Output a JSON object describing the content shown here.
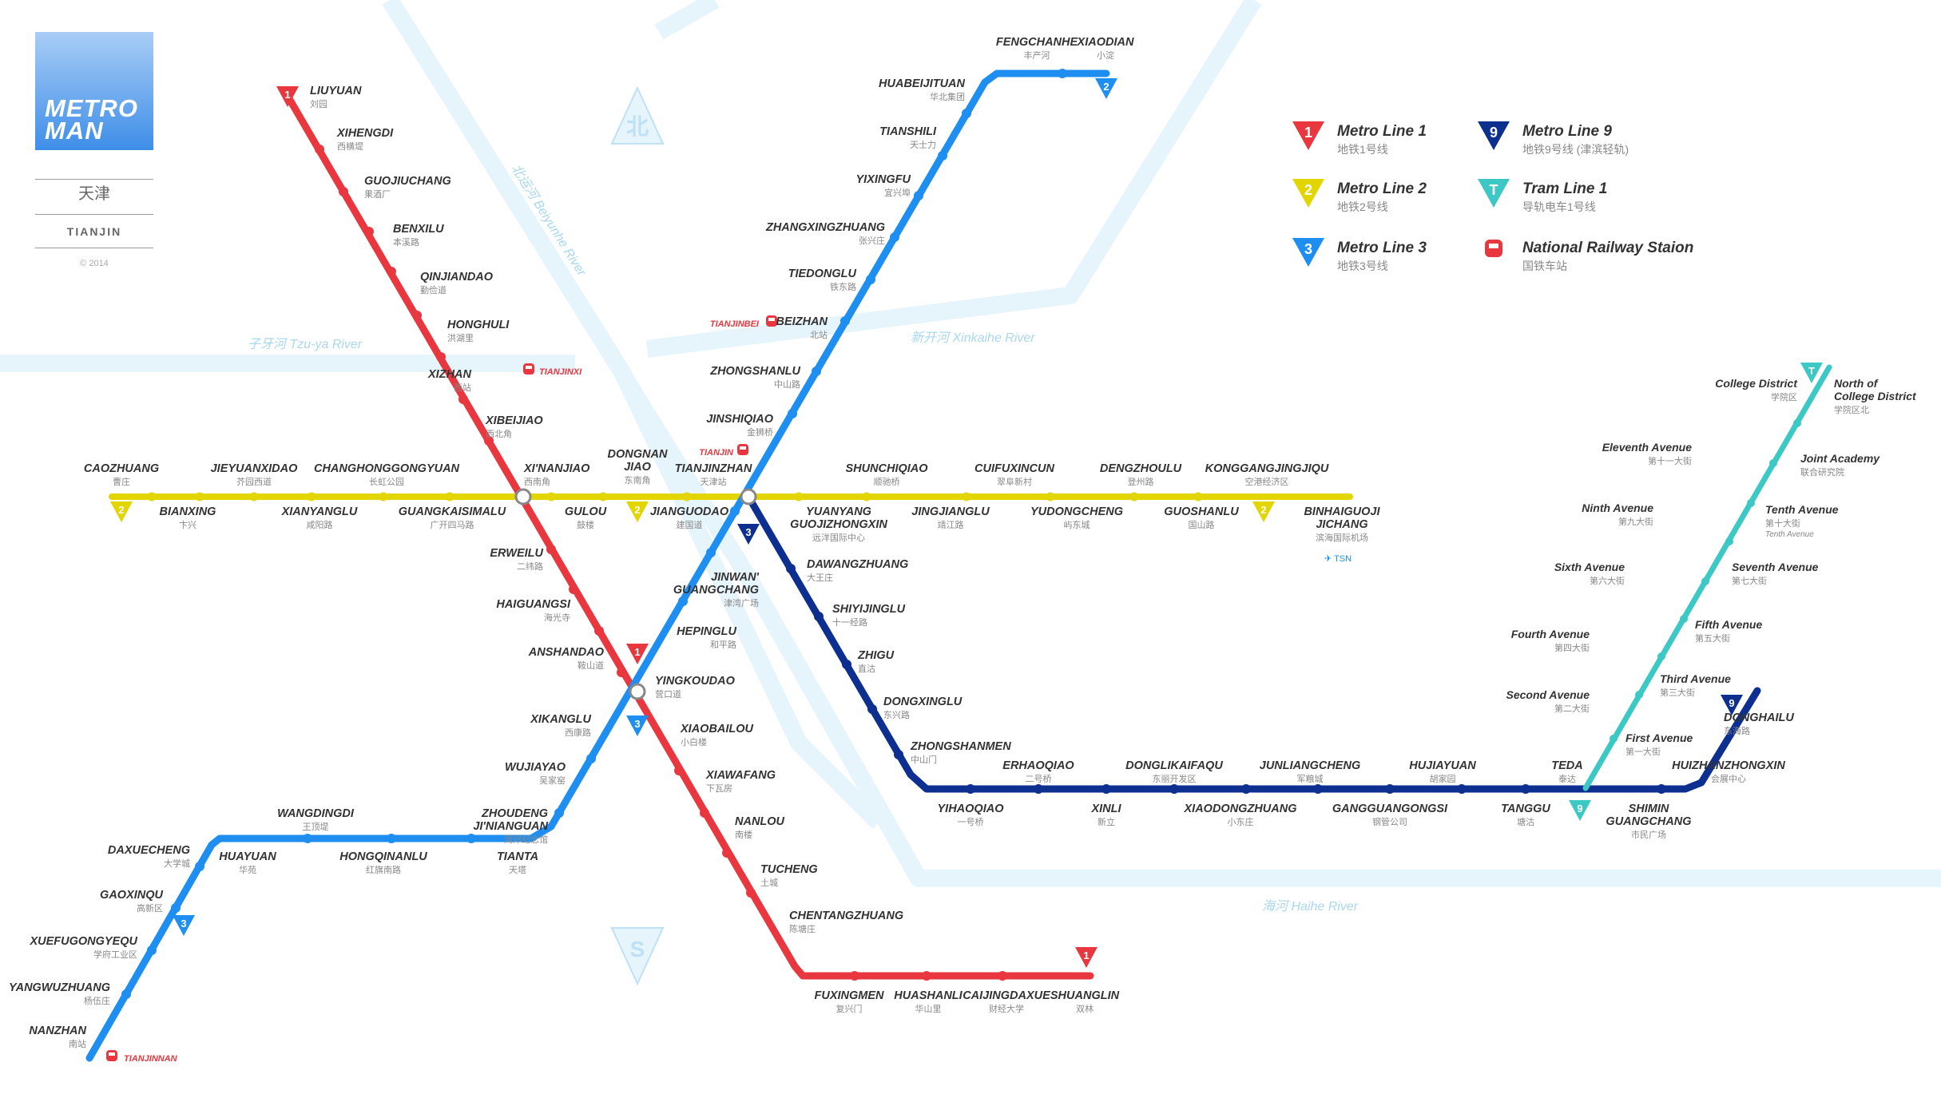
{
  "branding": {
    "title_1": "METRO",
    "title_2": "MAN",
    "city_zh": "天津",
    "city_en": "TIANJIN",
    "copyright": "© 2014"
  },
  "colors": {
    "line1": "#e8373f",
    "line2": "#e3d600",
    "line3": "#1e8ff0",
    "line9": "#0d2f8f",
    "tram1": "#3cc8c4",
    "river": "#e6f4fc",
    "river_label": "#a8d8f0",
    "rail": "#e8373f"
  },
  "legend": [
    {
      "badge": "1",
      "color": "#e8373f",
      "name": "Metro Line 1",
      "zh": "地铁1号线"
    },
    {
      "badge": "2",
      "color": "#e3d600",
      "name": "Metro Line 2",
      "zh": "地铁2号线"
    },
    {
      "badge": "3",
      "color": "#1e8ff0",
      "name": "Metro Line 3",
      "zh": "地铁3号线"
    },
    {
      "badge": "9",
      "color": "#0d2f8f",
      "name": "Metro Line 9",
      "zh": "地铁9号线 (津滨轻轨)"
    },
    {
      "badge": "T",
      "color": "#3cc8c4",
      "name": "Tram Line 1",
      "zh": "导轨电车1号线"
    },
    {
      "badge": "rail-icon",
      "color": "#e8373f",
      "name": "National Railway Staion",
      "zh": "国铁车站"
    }
  ],
  "rivers": [
    {
      "zh": "子牙河",
      "en": "Tzu-ya River"
    },
    {
      "zh": "新开河",
      "en": "Xinkaihe River"
    },
    {
      "zh": "北运河",
      "en": "Beiyunhe River"
    },
    {
      "zh": "海河",
      "en": "Haihe River"
    }
  ],
  "compass": {
    "north": "北",
    "south": "S"
  },
  "line_badges": [
    "1",
    "1",
    "1",
    "2",
    "2",
    "2",
    "2",
    "3",
    "3",
    "3",
    "9",
    "9",
    "T",
    "T"
  ],
  "rail_labels": [
    "TIANJINXI",
    "TIANJINBEI",
    "TIANJIN",
    "TIANJINNAN"
  ],
  "airport": {
    "code": "TSN"
  },
  "stations": [
    {
      "en": "LIUYUAN",
      "zh": "刘园"
    },
    {
      "en": "XIHENGDI",
      "zh": "西横堤"
    },
    {
      "en": "GUOJIUCHANG",
      "zh": "果酒厂"
    },
    {
      "en": "BENXILU",
      "zh": "本溪路"
    },
    {
      "en": "QINJIANDAO",
      "zh": "勤俭道"
    },
    {
      "en": "HONGHULI",
      "zh": "洪湖里"
    },
    {
      "en": "XIZHAN",
      "zh": "西站"
    },
    {
      "en": "XIBEIJIAO",
      "zh": "西北角"
    },
    {
      "en": "XI'NANJIAO",
      "zh": "西南角"
    },
    {
      "en": "ERWEILU",
      "zh": "二纬路"
    },
    {
      "en": "HAIGUANGSI",
      "zh": "海光寺"
    },
    {
      "en": "ANSHANDAO",
      "zh": "鞍山道"
    },
    {
      "en": "YINGKOUDAO",
      "zh": "营口道"
    },
    {
      "en": "XIAOBAILOU",
      "zh": "小白楼"
    },
    {
      "en": "XIAWAFANG",
      "zh": "下瓦房"
    },
    {
      "en": "NANLOU",
      "zh": "南楼"
    },
    {
      "en": "TUCHENG",
      "zh": "土城"
    },
    {
      "en": "CHENTANGZHUANG",
      "zh": "陈塘庄"
    },
    {
      "en": "FUXINGMEN",
      "zh": "复兴门"
    },
    {
      "en": "HUASHANLI",
      "zh": "华山里"
    },
    {
      "en": "CAIJINGDAXUE",
      "zh": "财经大学"
    },
    {
      "en": "SHUANGLIN",
      "zh": "双林"
    },
    {
      "en": "CAOZHUANG",
      "zh": "曹庄"
    },
    {
      "en": "BIANXING",
      "zh": "卞兴"
    },
    {
      "en": "JIEYUANXIDAO",
      "zh": "芥园西道"
    },
    {
      "en": "XIANYANGLU",
      "zh": "咸阳路"
    },
    {
      "en": "CHANGHONGGONGYUAN",
      "zh": "长虹公园"
    },
    {
      "en": "GUANGKAISIMALU",
      "zh": "广开四马路"
    },
    {
      "en": "GULOU",
      "zh": "鼓楼"
    },
    {
      "en": "DONGNAN JIAO",
      "zh": "东南角"
    },
    {
      "en": "JIANGUODAO",
      "zh": "建国道"
    },
    {
      "en": "TIANJINZHAN",
      "zh": "天津站"
    },
    {
      "en": "YUANYANG GUOJIZHONGXIN",
      "zh": "远洋国际中心"
    },
    {
      "en": "SHUNCHIQIAO",
      "zh": "顺驰桥"
    },
    {
      "en": "JINGJIANGLU",
      "zh": "靖江路"
    },
    {
      "en": "CUIFUXINCUN",
      "zh": "翠阜新村"
    },
    {
      "en": "YUDONGCHENG",
      "zh": "屿东城"
    },
    {
      "en": "DENGZHOULU",
      "zh": "登州路"
    },
    {
      "en": "GUOSHANLU",
      "zh": "国山路"
    },
    {
      "en": "KONGGANGJINGJIQU",
      "zh": "空港经济区"
    },
    {
      "en": "BINHAIGUOJI JICHANG",
      "zh": "滨海国际机场"
    },
    {
      "en": "FENGCHANHE",
      "zh": "丰产河"
    },
    {
      "en": "XIAODIAN",
      "zh": "小淀"
    },
    {
      "en": "HUABEIJITUAN",
      "zh": "华北集团"
    },
    {
      "en": "TIANSHILI",
      "zh": "天士力"
    },
    {
      "en": "YIXINGFU",
      "zh": "宜兴埠"
    },
    {
      "en": "ZHANGXINGZHUANG",
      "zh": "张兴庄"
    },
    {
      "en": "TIEDONGLU",
      "zh": "铁东路"
    },
    {
      "en": "BEIZHAN",
      "zh": "北站"
    },
    {
      "en": "ZHONGSHANLU",
      "zh": "中山路"
    },
    {
      "en": "JINSHIQIAO",
      "zh": "金狮桥"
    },
    {
      "en": "JINWAN' GUANGCHANG",
      "zh": "津湾广场"
    },
    {
      "en": "HEPINGLU",
      "zh": "和平路"
    },
    {
      "en": "XIKANGLU",
      "zh": "西康路"
    },
    {
      "en": "WUJIAYAO",
      "zh": "吴家窑"
    },
    {
      "en": "ZHOUDENG JI'NIANGUAN",
      "zh": "周邓纪念馆"
    },
    {
      "en": "TIANTA",
      "zh": "天塔"
    },
    {
      "en": "HONGQINANLU",
      "zh": "红旗南路"
    },
    {
      "en": "WANGDINGDI",
      "zh": "王顶堤"
    },
    {
      "en": "HUAYUAN",
      "zh": "华苑"
    },
    {
      "en": "DAXUECHENG",
      "zh": "大学城"
    },
    {
      "en": "GAOXINQU",
      "zh": "高新区"
    },
    {
      "en": "XUEFUGONGYEQU",
      "zh": "学府工业区"
    },
    {
      "en": "YANGWUZHUANG",
      "zh": "杨伍庄"
    },
    {
      "en": "NANZHAN",
      "zh": "南站"
    },
    {
      "en": "DAWANGZHUANG",
      "zh": "大王庄"
    },
    {
      "en": "SHIYIJINGLU",
      "zh": "十一经路"
    },
    {
      "en": "ZHIGU",
      "zh": "直沽"
    },
    {
      "en": "DONGXINGLU",
      "zh": "东兴路"
    },
    {
      "en": "ZHONGSHANMEN",
      "zh": "中山门"
    },
    {
      "en": "YIHAOQIAO",
      "zh": "一号桥"
    },
    {
      "en": "ERHAOQIAO",
      "zh": "二号桥"
    },
    {
      "en": "XINLI",
      "zh": "新立"
    },
    {
      "en": "DONGLIKAIFAQU",
      "zh": "东丽开发区"
    },
    {
      "en": "XIAODONGZHUANG",
      "zh": "小东庄"
    },
    {
      "en": "JUNLIANGCHENG",
      "zh": "军粮城"
    },
    {
      "en": "GANGGUANGONGSI",
      "zh": "钢管公司"
    },
    {
      "en": "HUJIAYUAN",
      "zh": "胡家园"
    },
    {
      "en": "TANGGU",
      "zh": "塘沽"
    },
    {
      "en": "TEDA",
      "zh": "泰达"
    },
    {
      "en": "SHIMIN GUANGCHANG",
      "zh": "市民广场"
    },
    {
      "en": "HUIZHANZHONGXIN",
      "zh": "会展中心"
    },
    {
      "en": "DONGHAILU",
      "zh": "东海路"
    },
    {
      "en": "First Avenue",
      "zh": "第一大街"
    },
    {
      "en": "Second Avenue",
      "zh": "第二大街"
    },
    {
      "en": "Third Avenue",
      "zh": "第三大街"
    },
    {
      "en": "Fourth Avenue",
      "zh": "第四大街"
    },
    {
      "en": "Fifth Avenue",
      "zh": "第五大街"
    },
    {
      "en": "Sixth Avenue",
      "zh": "第六大街"
    },
    {
      "en": "Seventh Avenue",
      "zh": "第七大街"
    },
    {
      "en": "Ninth Avenue",
      "zh": "第九大街"
    },
    {
      "en": "Tenth Avenue",
      "zh": "第十大街",
      "extra": "Tenth Avenue"
    },
    {
      "en": "Eleventh Avenue",
      "zh": "第十一大街"
    },
    {
      "en": "Joint Academy",
      "zh": "联合研究院"
    },
    {
      "en": "College District",
      "zh": "学院区"
    },
    {
      "en": "North of College District",
      "zh": "学院区北"
    }
  ]
}
